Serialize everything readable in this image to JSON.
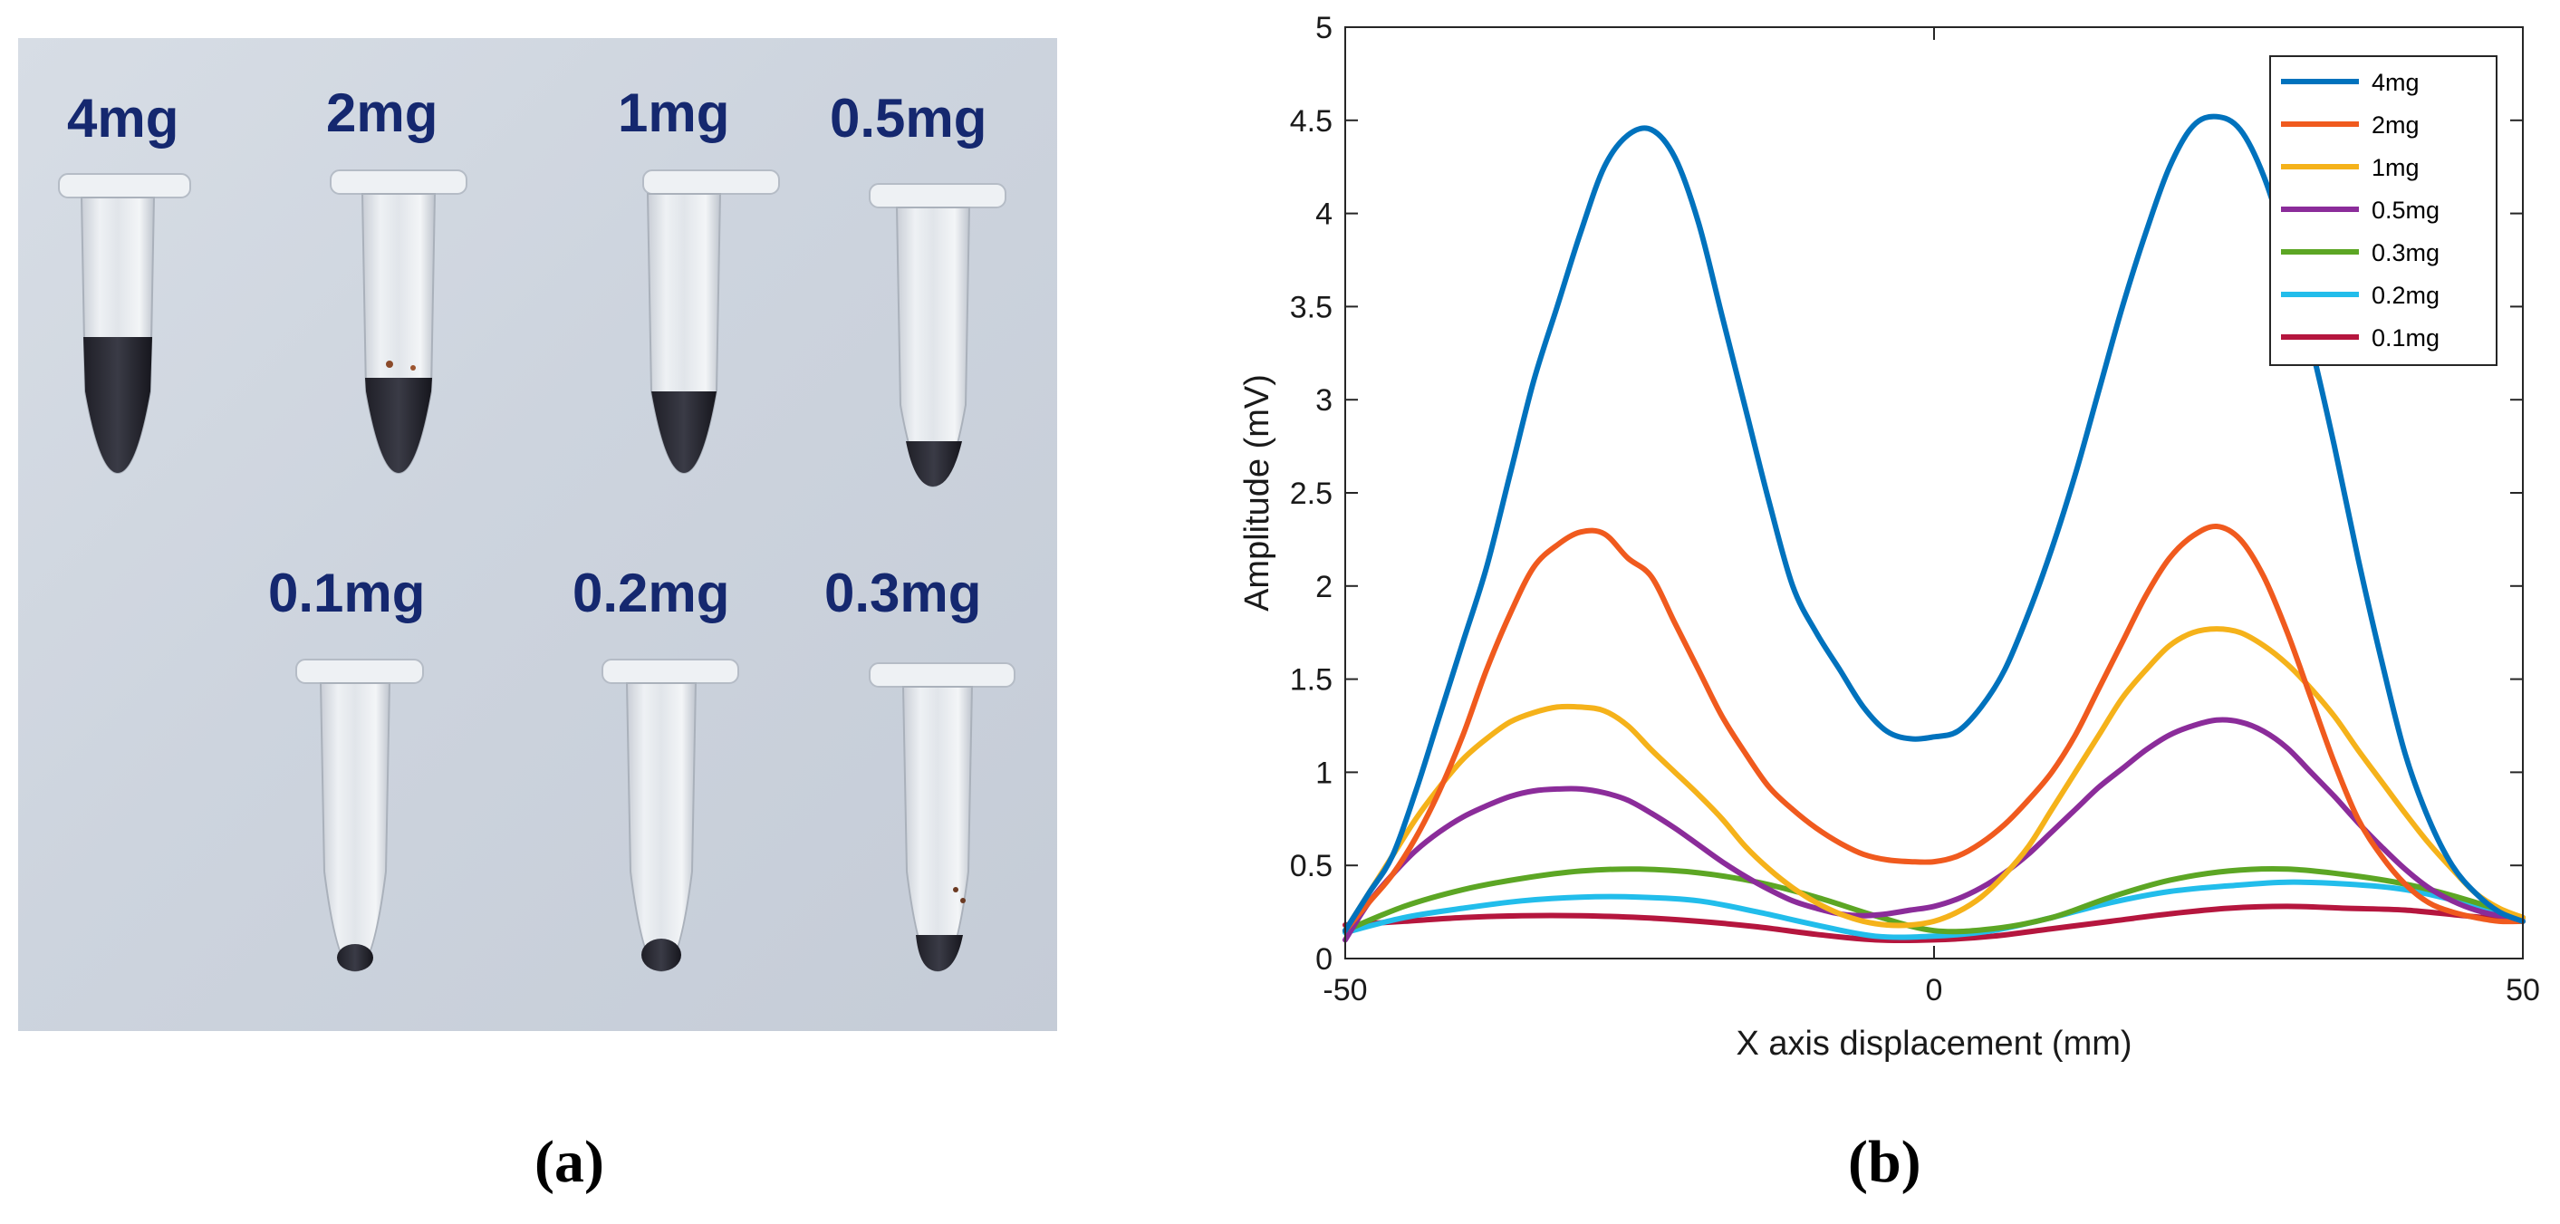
{
  "captions": {
    "a": "(a)",
    "b": "(b)"
  },
  "tube_labels": [
    "4mg",
    "2mg",
    "1mg",
    "0.5mg",
    "0.1mg",
    "0.2mg",
    "0.3mg"
  ],
  "colors": {
    "4mg": "#0072BD",
    "2mg": "#F05A1E",
    "1mg": "#F5B21A",
    "0.5mg": "#8B2C9A",
    "0.3mg": "#5CA624",
    "0.2mg": "#22BDEB",
    "0.1mg": "#B5163E"
  },
  "chart_data": {
    "type": "line",
    "title": "",
    "xlabel": "X axis displacement (mm)",
    "ylabel": "Amplitude (mV)",
    "xlim": [
      -50,
      50
    ],
    "ylim": [
      0,
      5
    ],
    "xticks": [
      -50,
      0,
      50
    ],
    "yticks": [
      0,
      0.5,
      1,
      1.5,
      2,
      2.5,
      3,
      3.5,
      4,
      4.5,
      5
    ],
    "ytick_labels": [
      "0",
      "0.5",
      "1",
      "1.5",
      "2",
      "2.5",
      "3",
      "3.5",
      "4",
      "4.5",
      "5"
    ],
    "xtick_labels": [
      "-50",
      "0",
      "50"
    ],
    "grid": false,
    "legend_position": "top-right",
    "series": [
      {
        "name": "4mg",
        "color": "#0072BD",
        "x": [
          -50,
          -48,
          -46,
          -44,
          -42,
          -40,
          -38,
          -36,
          -34,
          -32,
          -30,
          -28,
          -26,
          -24,
          -22,
          -20,
          -18,
          -16,
          -14,
          -12,
          -10,
          -8,
          -6,
          -4,
          -2,
          0,
          2,
          4,
          6,
          8,
          10,
          12,
          14,
          16,
          18,
          20,
          22,
          24,
          26,
          28,
          30,
          32,
          34,
          36,
          38,
          40,
          42,
          44,
          46,
          48,
          50
        ],
        "y": [
          0.15,
          0.35,
          0.55,
          0.9,
          1.3,
          1.7,
          2.1,
          2.6,
          3.1,
          3.5,
          3.9,
          4.25,
          4.42,
          4.45,
          4.3,
          3.95,
          3.45,
          2.95,
          2.45,
          2.0,
          1.75,
          1.55,
          1.35,
          1.22,
          1.18,
          1.19,
          1.22,
          1.35,
          1.55,
          1.85,
          2.2,
          2.6,
          3.05,
          3.5,
          3.9,
          4.25,
          4.47,
          4.52,
          4.45,
          4.2,
          3.8,
          3.3,
          2.75,
          2.15,
          1.6,
          1.1,
          0.75,
          0.5,
          0.35,
          0.25,
          0.2
        ]
      },
      {
        "name": "2mg",
        "color": "#F05A1E",
        "x": [
          -50,
          -48,
          -46,
          -44,
          -42,
          -40,
          -38,
          -36,
          -34,
          -32,
          -30,
          -28,
          -26,
          -24,
          -22,
          -20,
          -18,
          -16,
          -14,
          -12,
          -10,
          -8,
          -6,
          -4,
          -2,
          0,
          2,
          4,
          6,
          8,
          10,
          12,
          14,
          16,
          18,
          20,
          22,
          24,
          26,
          28,
          30,
          32,
          34,
          36,
          38,
          40,
          42,
          44,
          46,
          48,
          50
        ],
        "y": [
          0.15,
          0.3,
          0.45,
          0.65,
          0.9,
          1.2,
          1.55,
          1.85,
          2.1,
          2.22,
          2.29,
          2.28,
          2.15,
          2.05,
          1.8,
          1.55,
          1.3,
          1.1,
          0.92,
          0.8,
          0.7,
          0.62,
          0.56,
          0.53,
          0.52,
          0.52,
          0.55,
          0.62,
          0.72,
          0.85,
          1.0,
          1.2,
          1.45,
          1.7,
          1.95,
          2.15,
          2.27,
          2.32,
          2.25,
          2.05,
          1.75,
          1.4,
          1.05,
          0.75,
          0.55,
          0.4,
          0.3,
          0.25,
          0.22,
          0.2,
          0.2
        ]
      },
      {
        "name": "1mg",
        "color": "#F5B21A",
        "x": [
          -50,
          -48,
          -46,
          -44,
          -42,
          -40,
          -38,
          -36,
          -34,
          -32,
          -30,
          -28,
          -26,
          -24,
          -22,
          -20,
          -18,
          -16,
          -14,
          -12,
          -10,
          -8,
          -6,
          -4,
          -2,
          0,
          2,
          4,
          6,
          8,
          10,
          12,
          14,
          16,
          18,
          20,
          22,
          24,
          26,
          28,
          30,
          32,
          34,
          36,
          38,
          40,
          42,
          44,
          46,
          48,
          50
        ],
        "y": [
          0.15,
          0.35,
          0.55,
          0.75,
          0.92,
          1.07,
          1.18,
          1.27,
          1.32,
          1.35,
          1.35,
          1.33,
          1.25,
          1.12,
          1.0,
          0.88,
          0.75,
          0.6,
          0.48,
          0.38,
          0.3,
          0.24,
          0.2,
          0.18,
          0.18,
          0.2,
          0.25,
          0.33,
          0.45,
          0.6,
          0.8,
          1.0,
          1.2,
          1.4,
          1.55,
          1.68,
          1.75,
          1.77,
          1.75,
          1.68,
          1.58,
          1.45,
          1.3,
          1.12,
          0.95,
          0.78,
          0.62,
          0.48,
          0.35,
          0.27,
          0.22
        ]
      },
      {
        "name": "0.5mg",
        "color": "#8B2C9A",
        "x": [
          -50,
          -48,
          -46,
          -44,
          -42,
          -40,
          -38,
          -36,
          -34,
          -32,
          -30,
          -28,
          -26,
          -24,
          -22,
          -20,
          -18,
          -16,
          -14,
          -12,
          -10,
          -8,
          -6,
          -4,
          -2,
          0,
          2,
          4,
          6,
          8,
          10,
          12,
          14,
          16,
          18,
          20,
          22,
          24,
          26,
          28,
          30,
          32,
          34,
          36,
          38,
          40,
          42,
          44,
          46,
          48,
          50
        ],
        "y": [
          0.1,
          0.3,
          0.45,
          0.58,
          0.68,
          0.76,
          0.82,
          0.87,
          0.9,
          0.91,
          0.91,
          0.89,
          0.85,
          0.78,
          0.7,
          0.61,
          0.52,
          0.44,
          0.37,
          0.31,
          0.27,
          0.24,
          0.23,
          0.24,
          0.26,
          0.28,
          0.32,
          0.38,
          0.46,
          0.56,
          0.68,
          0.8,
          0.92,
          1.02,
          1.12,
          1.2,
          1.25,
          1.28,
          1.27,
          1.22,
          1.13,
          1.0,
          0.87,
          0.73,
          0.6,
          0.48,
          0.38,
          0.31,
          0.26,
          0.23,
          0.22
        ]
      },
      {
        "name": "0.3mg",
        "color": "#5CA624",
        "x": [
          -50,
          -45,
          -40,
          -35,
          -30,
          -25,
          -20,
          -15,
          -10,
          -5,
          0,
          5,
          10,
          15,
          20,
          25,
          30,
          35,
          40,
          45,
          50
        ],
        "y": [
          0.15,
          0.28,
          0.37,
          0.43,
          0.47,
          0.48,
          0.46,
          0.41,
          0.33,
          0.23,
          0.15,
          0.16,
          0.22,
          0.33,
          0.42,
          0.47,
          0.48,
          0.45,
          0.4,
          0.32,
          0.22
        ]
      },
      {
        "name": "0.2mg",
        "color": "#22BDEB",
        "x": [
          -50,
          -45,
          -40,
          -35,
          -30,
          -25,
          -20,
          -15,
          -10,
          -5,
          0,
          5,
          10,
          15,
          20,
          25,
          30,
          35,
          40,
          45,
          50
        ],
        "y": [
          0.14,
          0.22,
          0.27,
          0.31,
          0.33,
          0.33,
          0.31,
          0.25,
          0.18,
          0.12,
          0.12,
          0.15,
          0.22,
          0.3,
          0.36,
          0.39,
          0.41,
          0.4,
          0.37,
          0.3,
          0.22
        ]
      },
      {
        "name": "0.1mg",
        "color": "#B5163E",
        "x": [
          -50,
          -45,
          -40,
          -35,
          -30,
          -25,
          -20,
          -15,
          -10,
          -5,
          0,
          5,
          10,
          15,
          20,
          25,
          30,
          35,
          40,
          45,
          50
        ],
        "y": [
          0.18,
          0.2,
          0.22,
          0.23,
          0.23,
          0.22,
          0.2,
          0.17,
          0.13,
          0.1,
          0.1,
          0.12,
          0.16,
          0.2,
          0.24,
          0.27,
          0.28,
          0.27,
          0.26,
          0.23,
          0.2
        ]
      }
    ]
  }
}
